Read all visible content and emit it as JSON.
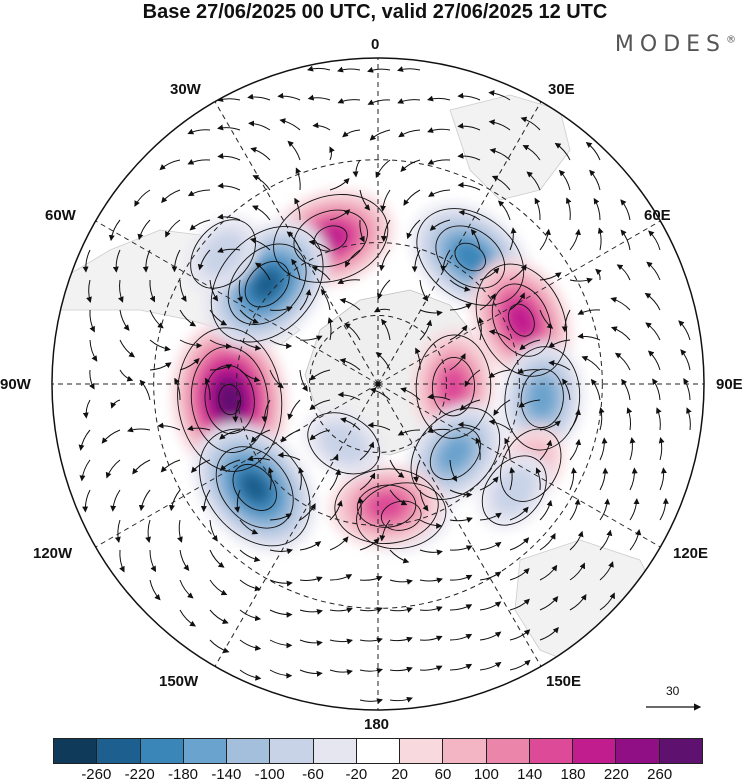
{
  "title": "Base 27/06/2025 00 UTC, valid 27/06/2025 12 UTC",
  "brand": "MODES",
  "brand_mark": "®",
  "labels": {
    "lon_0": "0",
    "lon_30e": "30E",
    "lon_60e": "60E",
    "lon_90e": "90E",
    "lon_120e": "120E",
    "lon_150e": "150E",
    "lon_180": "180",
    "lon_150w": "150W",
    "lon_120w": "120W",
    "lon_90w": "90W",
    "lon_60w": "60W",
    "lon_30w": "30W"
  },
  "reference_vector": "30",
  "colorbar": {
    "colors": [
      "#0f3a59",
      "#1d5f8e",
      "#3a86b9",
      "#6aa3cd",
      "#a4bfdc",
      "#c9d3e7",
      "#e6e6f1",
      "#ffffff",
      "#f7d9de",
      "#f3b5c3",
      "#eb86aa",
      "#dd4a97",
      "#c11d8f",
      "#900f85",
      "#5e116f"
    ],
    "ticks": [
      "-260",
      "-220",
      "-180",
      "-140",
      "-100",
      "-60",
      "-20",
      "20",
      "60",
      "100",
      "140",
      "180",
      "220",
      "260"
    ]
  },
  "anomalies": [
    {
      "lon": -96,
      "lat": -48,
      "value": 260
    },
    {
      "lon": -18,
      "lat": -47,
      "value": 180
    },
    {
      "lon": 36,
      "lat": -46,
      "value": -200
    },
    {
      "lon": 66,
      "lat": -46,
      "value": 180
    },
    {
      "lon": 92,
      "lat": -68,
      "value": 140
    },
    {
      "lon": 95,
      "lat": -44,
      "value": -140
    },
    {
      "lon": 118,
      "lat": -42,
      "value": 60
    },
    {
      "lon": 132,
      "lat": -60,
      "value": -160
    },
    {
      "lon": 128,
      "lat": -42,
      "value": -60
    },
    {
      "lon": 170,
      "lat": -52,
      "value": -100
    },
    {
      "lon": 176,
      "lat": -55,
      "value": 140
    },
    {
      "lon": -130,
      "lat": -45,
      "value": -240
    },
    {
      "lon": -48,
      "lat": -48,
      "value": -240
    },
    {
      "lon": -150,
      "lat": -70,
      "value": -60
    },
    {
      "lon": -50,
      "lat": -35,
      "value": -60
    }
  ]
}
